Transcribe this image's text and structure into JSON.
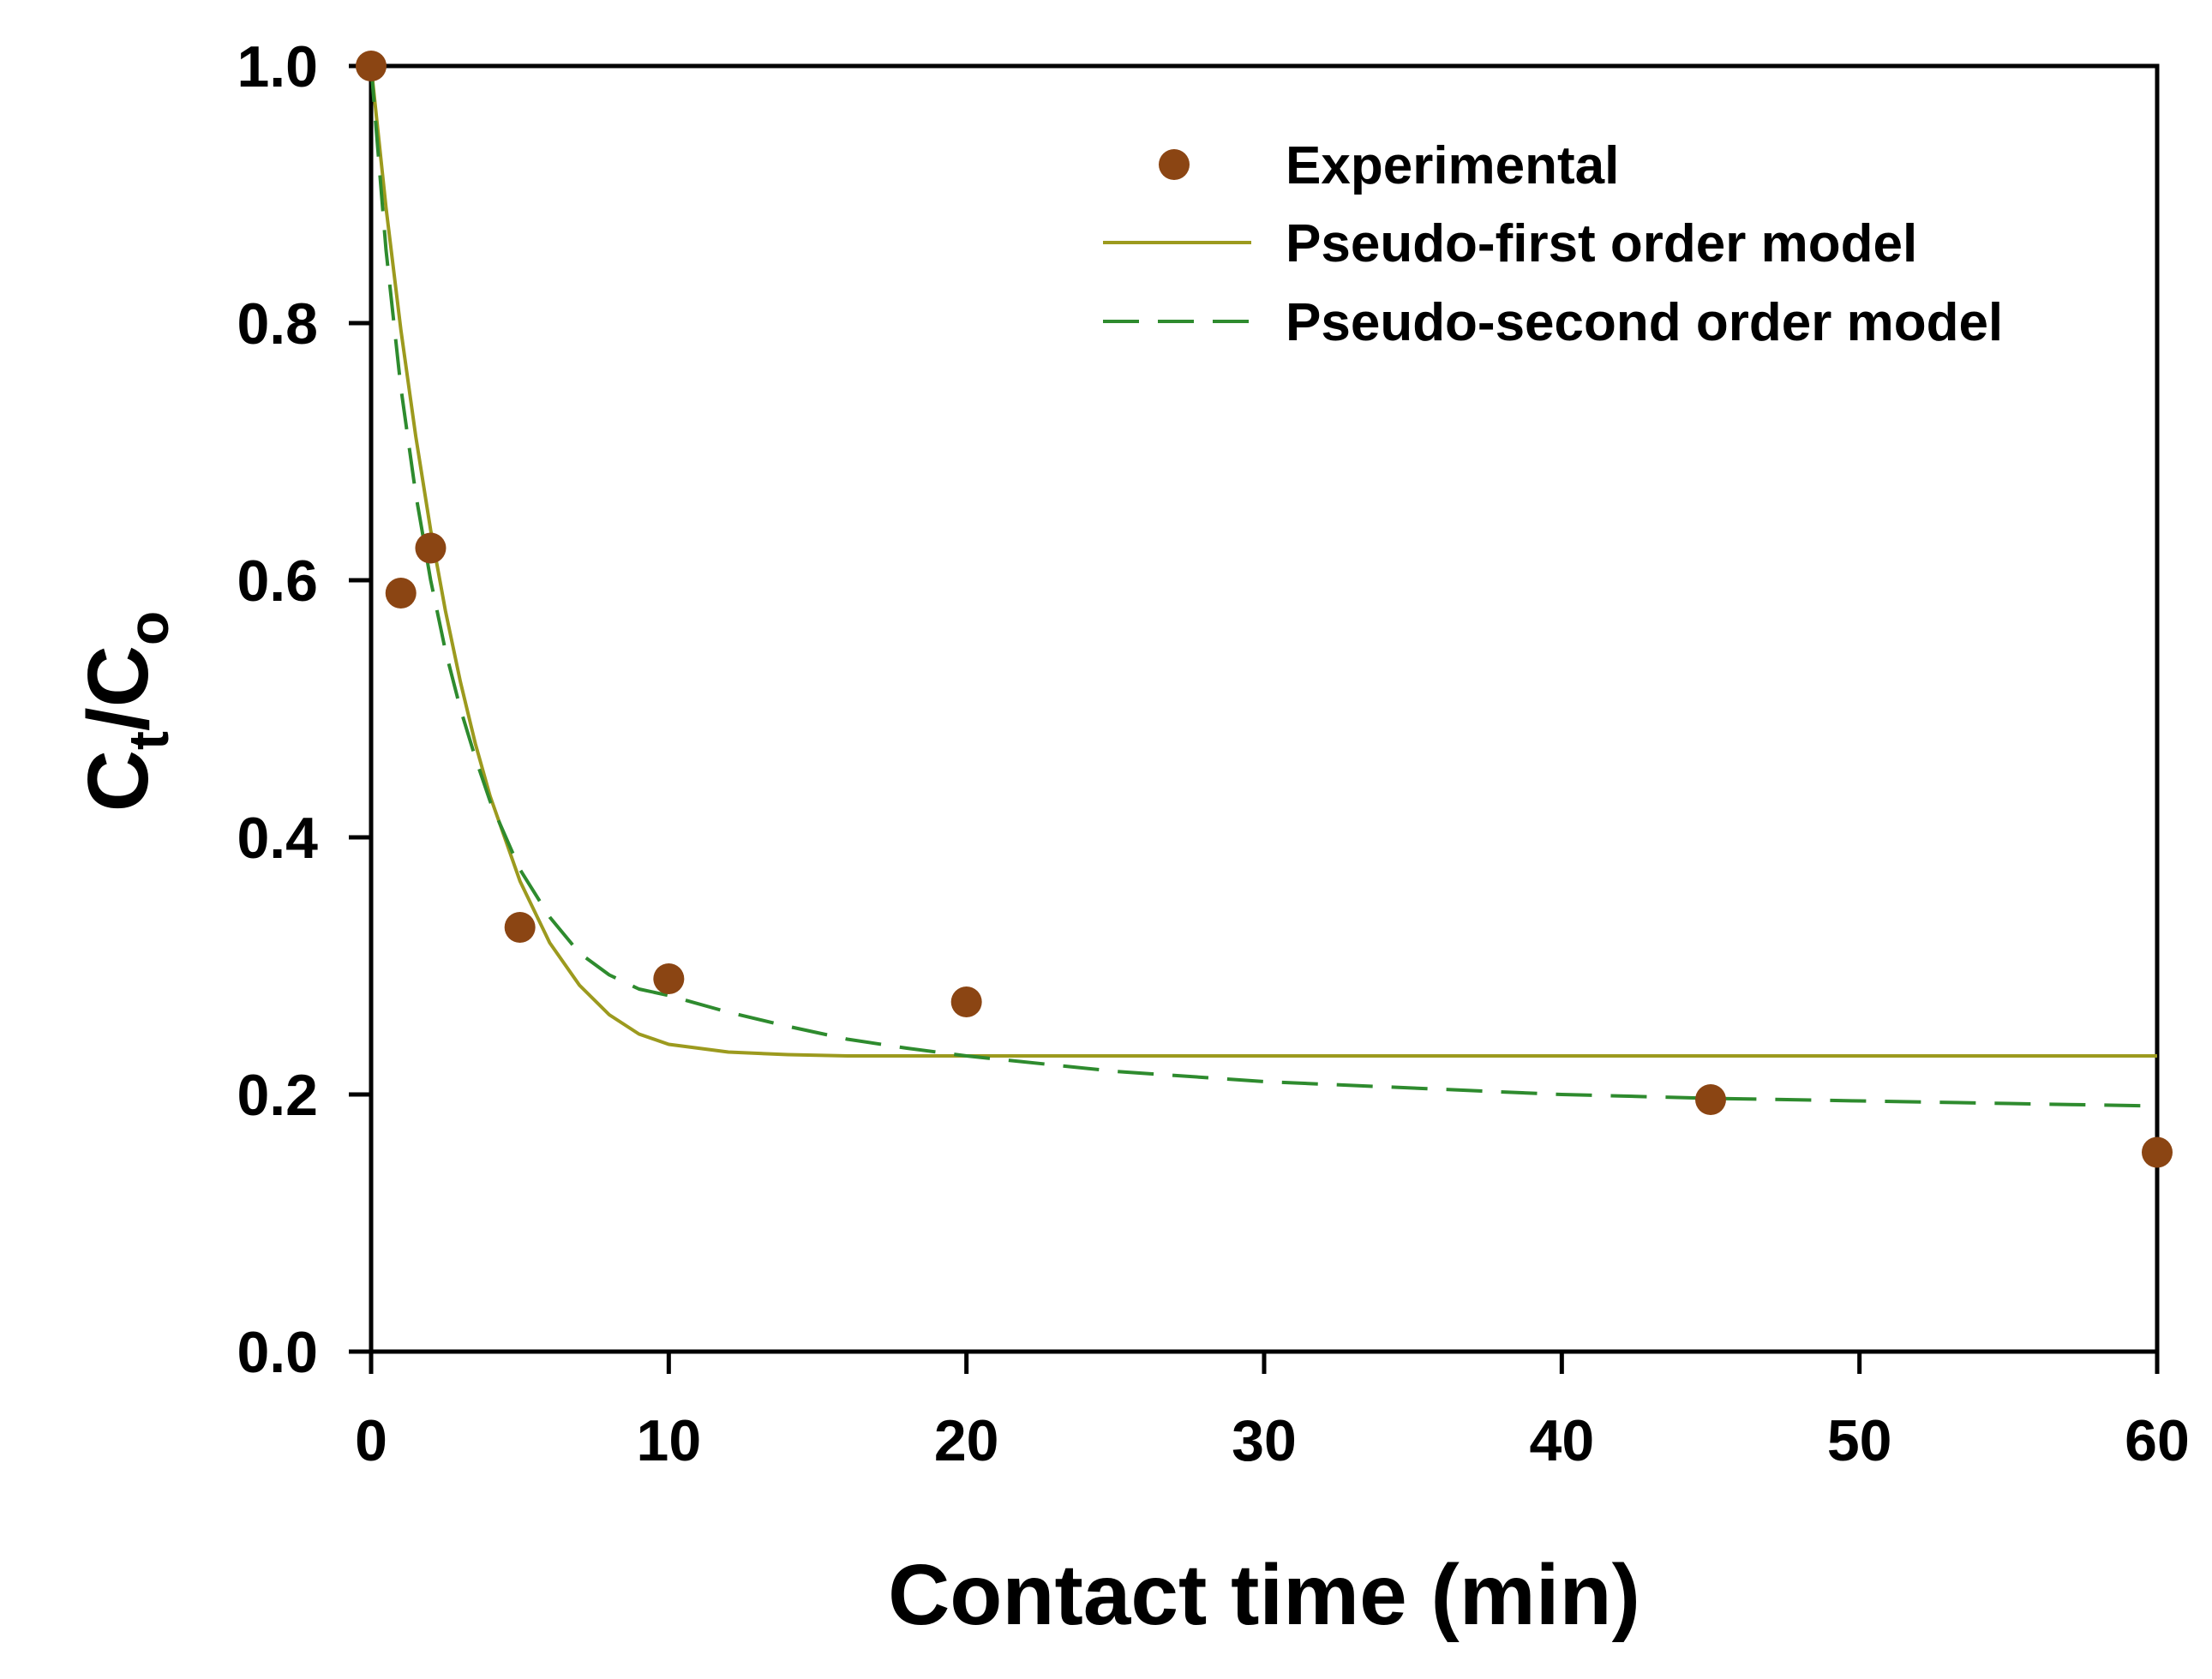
{
  "chart_data": {
    "type": "scatter",
    "title": "",
    "xlabel": "Contact time (min)",
    "ylabel": {
      "main": "C",
      "sub1": "t",
      "mid": "/C",
      "sub2": "o"
    },
    "xlim": [
      0,
      60
    ],
    "ylim": [
      0.0,
      1.0
    ],
    "xticks": [
      0,
      10,
      20,
      30,
      40,
      50,
      60
    ],
    "xtick_labels": [
      "0",
      "10",
      "20",
      "30",
      "40",
      "50",
      "60"
    ],
    "yticks": [
      0.0,
      0.2,
      0.4,
      0.6,
      0.8,
      1.0
    ],
    "ytick_labels": [
      "0.0",
      "0.2",
      "0.4",
      "0.6",
      "0.8",
      "1.0"
    ],
    "grid": false,
    "legend_position": "top-right",
    "series": [
      {
        "name": "Experimental",
        "kind": "points",
        "color": "#8B4513",
        "x": [
          0,
          1,
          2,
          5,
          10,
          20,
          45,
          60
        ],
        "y": [
          1.0,
          0.59,
          0.625,
          0.33,
          0.29,
          0.272,
          0.196,
          0.155
        ]
      },
      {
        "name": "Pseudo-first order model",
        "kind": "solid-line",
        "color": "#9C9A1E",
        "x": [
          0,
          0.5,
          1,
          1.5,
          2,
          2.5,
          3,
          3.5,
          4,
          5,
          6,
          7,
          8,
          9,
          10,
          12,
          14,
          16,
          18,
          20,
          25,
          30,
          40,
          50,
          60
        ],
        "y": [
          1.0,
          0.89,
          0.795,
          0.712,
          0.639,
          0.576,
          0.521,
          0.473,
          0.432,
          0.366,
          0.318,
          0.285,
          0.262,
          0.247,
          0.239,
          0.233,
          0.231,
          0.23,
          0.23,
          0.23,
          0.23,
          0.23,
          0.23,
          0.23,
          0.23
        ]
      },
      {
        "name": "Pseudo-second order model",
        "kind": "dashed-line",
        "color": "#2E8B2E",
        "x": [
          0,
          0.5,
          1,
          1.5,
          2,
          2.5,
          3,
          3.5,
          4,
          5,
          6,
          7,
          8,
          9,
          10,
          12,
          14,
          16,
          18,
          20,
          25,
          30,
          35,
          40,
          45,
          50,
          55,
          60
        ],
        "y": [
          1.0,
          0.857,
          0.75,
          0.667,
          0.6,
          0.545,
          0.5,
          0.462,
          0.428,
          0.375,
          0.338,
          0.31,
          0.293,
          0.282,
          0.277,
          0.264,
          0.253,
          0.243,
          0.236,
          0.23,
          0.218,
          0.21,
          0.205,
          0.2,
          0.197,
          0.195,
          0.193,
          0.191
        ]
      }
    ]
  }
}
